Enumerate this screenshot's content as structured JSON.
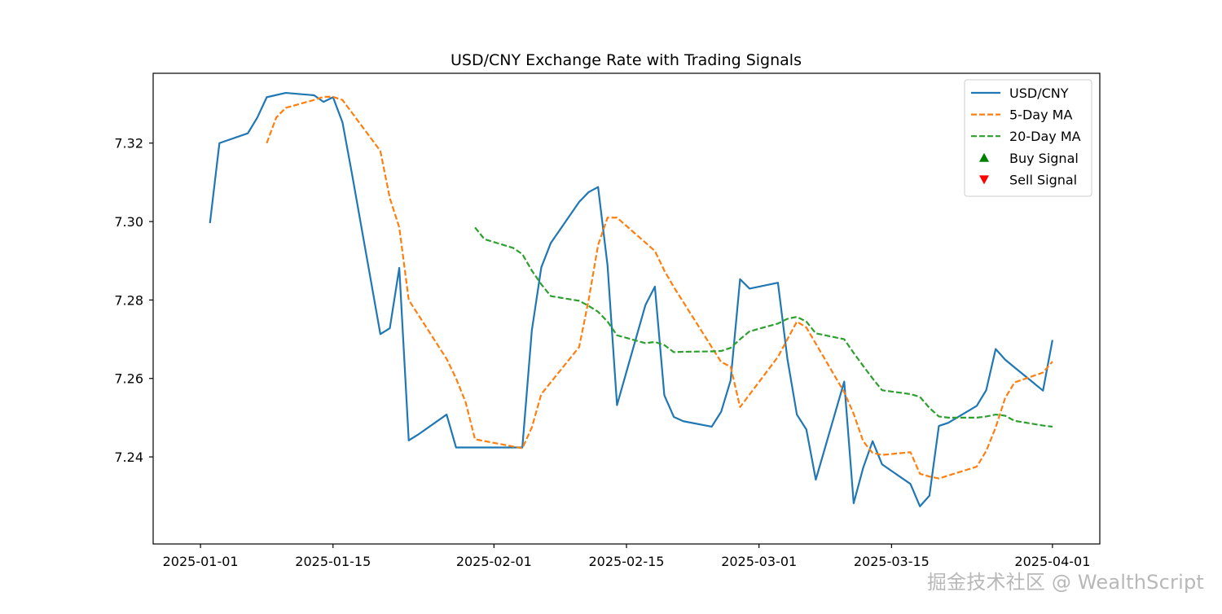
{
  "chart_data": {
    "type": "line",
    "title": "USD/CNY Exchange Rate with Trading Signals",
    "xlabel": "",
    "ylabel": "",
    "xlim": [
      "2024-12-27",
      "2025-04-06"
    ],
    "ylim": [
      7.2178,
      7.3378
    ],
    "x_ticks": [
      "2025-01-01",
      "2025-01-15",
      "2025-02-01",
      "2025-02-15",
      "2025-03-01",
      "2025-03-15",
      "2025-04-01"
    ],
    "y_ticks": [
      7.24,
      7.26,
      7.28,
      7.3,
      7.32
    ],
    "y_tick_labels": [
      "7.24",
      "7.26",
      "7.28",
      "7.30",
      "7.32"
    ],
    "legend_position": "top-right",
    "series": [
      {
        "name": "USD/CNY",
        "color": "#1f77b4",
        "style": "solid",
        "x": [
          "2025-01-02",
          "2025-01-03",
          "2025-01-06",
          "2025-01-07",
          "2025-01-08",
          "2025-01-10",
          "2025-01-13",
          "2025-01-14",
          "2025-01-15",
          "2025-01-16",
          "2025-01-17",
          "2025-01-20",
          "2025-01-21",
          "2025-01-22",
          "2025-01-23",
          "2025-01-24",
          "2025-01-27",
          "2025-01-28",
          "2025-02-03",
          "2025-02-04",
          "2025-02-05",
          "2025-02-06",
          "2025-02-07",
          "2025-02-10",
          "2025-02-11",
          "2025-02-12",
          "2025-02-13",
          "2025-02-14",
          "2025-02-17",
          "2025-02-18",
          "2025-02-19",
          "2025-02-20",
          "2025-02-21",
          "2025-02-24",
          "2025-02-25",
          "2025-02-26",
          "2025-02-27",
          "2025-02-28",
          "2025-03-03",
          "2025-03-04",
          "2025-03-05",
          "2025-03-06",
          "2025-03-07",
          "2025-03-10",
          "2025-03-11",
          "2025-03-12",
          "2025-03-13",
          "2025-03-14",
          "2025-03-17",
          "2025-03-18",
          "2025-03-19",
          "2025-03-20",
          "2025-03-21",
          "2025-03-24",
          "2025-03-25",
          "2025-03-26",
          "2025-03-27",
          "2025-03-28",
          "2025-03-31",
          "2025-04-01"
        ],
        "values": [
          7.2996,
          7.32,
          7.3225,
          7.3265,
          7.3317,
          7.3328,
          7.3322,
          7.3305,
          7.3317,
          7.3253,
          7.3122,
          7.2713,
          7.2728,
          7.2882,
          7.2442,
          7.2457,
          7.2508,
          7.2424,
          7.2424,
          7.2424,
          7.2722,
          7.2883,
          7.2945,
          7.305,
          7.3075,
          7.3088,
          7.2888,
          7.2532,
          7.2787,
          7.2834,
          7.2557,
          7.2502,
          7.2491,
          7.2477,
          7.2515,
          7.2595,
          7.2853,
          7.2829,
          7.2844,
          7.265,
          7.2508,
          7.247,
          7.2342,
          7.2592,
          7.2282,
          7.2372,
          7.244,
          7.2381,
          7.2331,
          7.2274,
          7.2301,
          7.2479,
          7.2487,
          7.253,
          7.257,
          7.2675,
          7.2648,
          7.2628,
          7.2569,
          7.2698
        ]
      },
      {
        "name": "5-Day MA",
        "color": "#ff7f0e",
        "style": "dashed",
        "x": [
          "2025-01-08",
          "2025-01-09",
          "2025-01-10",
          "2025-01-13",
          "2025-01-14",
          "2025-01-15",
          "2025-01-16",
          "2025-01-20",
          "2025-01-21",
          "2025-01-22",
          "2025-01-23",
          "2025-01-27",
          "2025-01-28",
          "2025-01-29",
          "2025-01-30",
          "2025-02-04",
          "2025-02-05",
          "2025-02-06",
          "2025-02-10",
          "2025-02-11",
          "2025-02-12",
          "2025-02-13",
          "2025-02-14",
          "2025-02-18",
          "2025-02-19",
          "2025-02-20",
          "2025-02-25",
          "2025-02-26",
          "2025-02-27",
          "2025-03-03",
          "2025-03-04",
          "2025-03-05",
          "2025-03-06",
          "2025-03-10",
          "2025-03-11",
          "2025-03-12",
          "2025-03-13",
          "2025-03-14",
          "2025-03-17",
          "2025-03-18",
          "2025-03-19",
          "2025-03-20",
          "2025-03-24",
          "2025-03-25",
          "2025-03-26",
          "2025-03-27",
          "2025-03-28",
          "2025-03-31",
          "2025-04-01"
        ],
        "values": [
          7.32,
          7.3265,
          7.329,
          7.331,
          7.3318,
          7.3318,
          7.331,
          7.318,
          7.306,
          7.2985,
          7.28,
          7.265,
          7.26,
          7.254,
          7.2445,
          7.2422,
          7.2475,
          7.256,
          7.268,
          7.28,
          7.294,
          7.301,
          7.301,
          7.2925,
          7.2875,
          7.2833,
          7.2642,
          7.263,
          7.2527,
          7.2655,
          7.27,
          7.2745,
          7.273,
          7.2565,
          7.251,
          7.244,
          7.241,
          7.2405,
          7.2412,
          7.2357,
          7.235,
          7.2345,
          7.2375,
          7.2415,
          7.2475,
          7.255,
          7.259,
          7.2615,
          7.2643
        ]
      },
      {
        "name": "20-Day MA",
        "color": "#2ca02c",
        "style": "dashed",
        "x": [
          "2025-01-30",
          "2025-01-31",
          "2025-02-03",
          "2025-02-04",
          "2025-02-05",
          "2025-02-06",
          "2025-02-07",
          "2025-02-10",
          "2025-02-11",
          "2025-02-12",
          "2025-02-13",
          "2025-02-14",
          "2025-02-17",
          "2025-02-18",
          "2025-02-19",
          "2025-02-20",
          "2025-02-21",
          "2025-02-24",
          "2025-02-25",
          "2025-02-26",
          "2025-02-27",
          "2025-02-28",
          "2025-03-03",
          "2025-03-04",
          "2025-03-05",
          "2025-03-06",
          "2025-03-07",
          "2025-03-10",
          "2025-03-11",
          "2025-03-12",
          "2025-03-13",
          "2025-03-14",
          "2025-03-17",
          "2025-03-18",
          "2025-03-19",
          "2025-03-20",
          "2025-03-21",
          "2025-03-24",
          "2025-03-25",
          "2025-03-26",
          "2025-03-27",
          "2025-03-28",
          "2025-03-31",
          "2025-04-01"
        ],
        "values": [
          7.2985,
          7.2955,
          7.2933,
          7.2917,
          7.2875,
          7.284,
          7.281,
          7.2798,
          7.2785,
          7.277,
          7.2745,
          7.271,
          7.269,
          7.2693,
          7.2685,
          7.2667,
          7.2668,
          7.2669,
          7.267,
          7.2678,
          7.27,
          7.272,
          7.274,
          7.2752,
          7.2757,
          7.2745,
          7.2715,
          7.27,
          7.2665,
          7.2632,
          7.26,
          7.257,
          7.256,
          7.2553,
          7.2525,
          7.2503,
          7.25,
          7.25,
          7.2503,
          7.2508,
          7.2505,
          7.2492,
          7.248,
          7.2477
        ]
      }
    ],
    "legend": [
      {
        "label": "USD/CNY",
        "marker": "solid-line",
        "color": "#1f77b4"
      },
      {
        "label": "5-Day MA",
        "marker": "dashed-line",
        "color": "#ff7f0e"
      },
      {
        "label": "20-Day MA",
        "marker": "dashed-line",
        "color": "#2ca02c"
      },
      {
        "label": "Buy Signal",
        "marker": "triangle-up",
        "color": "#008000"
      },
      {
        "label": "Sell Signal",
        "marker": "triangle-down",
        "color": "#ff0000"
      }
    ],
    "buy_signals": [],
    "sell_signals": []
  },
  "watermark": "掘金技术社区 @ WealthScript"
}
